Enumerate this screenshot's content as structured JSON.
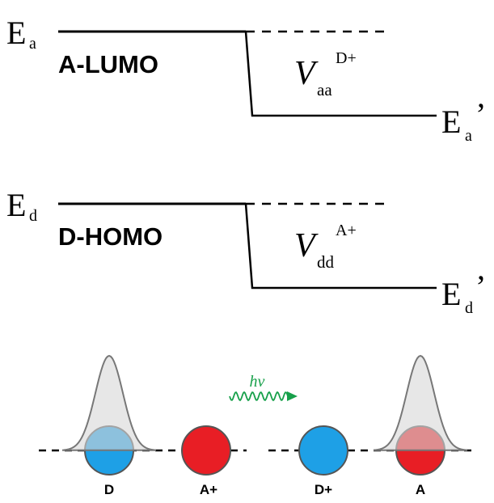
{
  "levels": [
    {
      "symbol": "E",
      "subscript": "a",
      "name": "A-LUMO",
      "shift_symbol": "V",
      "shift_subscript": "aa",
      "shift_superscript": "D+",
      "final_symbol": "E",
      "final_subscript": "a",
      "final_prime": "’"
    },
    {
      "symbol": "E",
      "subscript": "d",
      "name": "D-HOMO",
      "shift_symbol": "V",
      "shift_subscript": "dd",
      "shift_superscript": "A+",
      "final_symbol": "E",
      "final_subscript": "d",
      "final_prime": "’"
    }
  ],
  "photon": {
    "label": "hν"
  },
  "species": [
    {
      "label": "D"
    },
    {
      "label": "A+"
    },
    {
      "label": "D+"
    },
    {
      "label": "A"
    }
  ]
}
